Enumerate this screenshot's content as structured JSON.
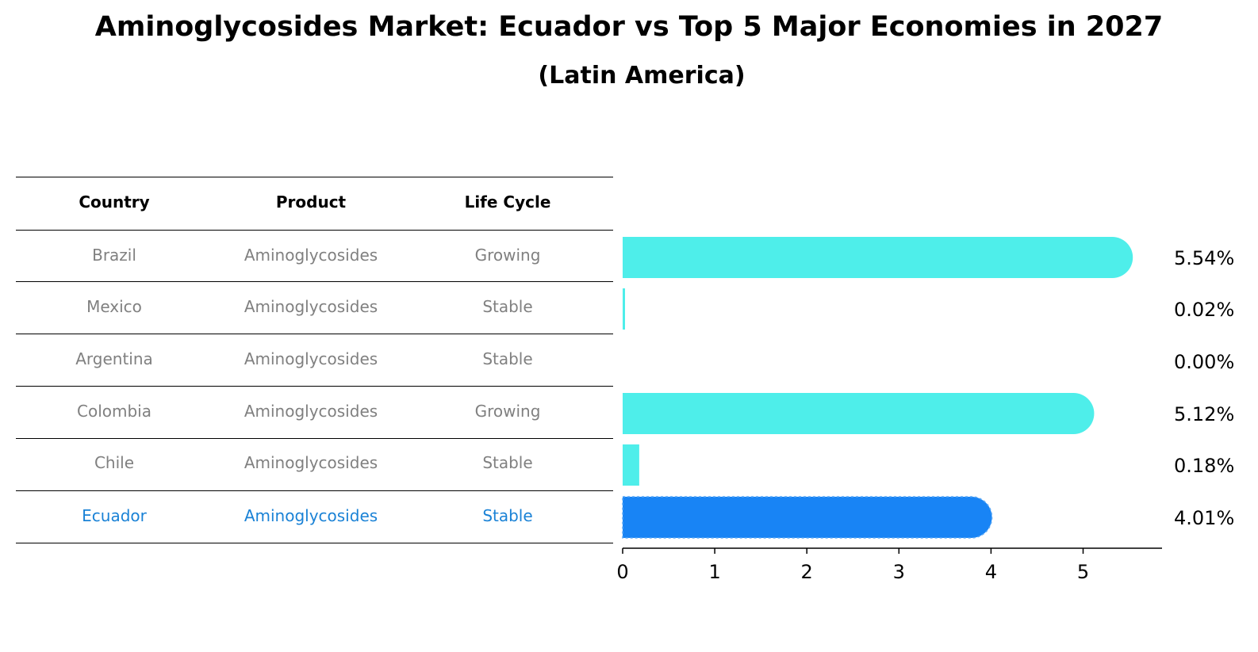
{
  "title": "Aminoglycosides Market: Ecuador vs Top 5 Major Economies in 2027",
  "subtitle": "(Latin America)",
  "table": {
    "headers": [
      "Country",
      "Product",
      "Life Cycle"
    ],
    "rows": [
      [
        "Brazil",
        "Aminoglycosides",
        "Growing"
      ],
      [
        "Mexico",
        "Aminoglycosides",
        "Stable"
      ],
      [
        "Argentina",
        "Aminoglycosides",
        "Stable"
      ],
      [
        "Colombia",
        "Aminoglycosides",
        "Growing"
      ],
      [
        "Chile",
        "Aminoglycosides",
        "Stable"
      ],
      [
        "Ecuador",
        "Aminoglycosides",
        "Stable"
      ]
    ],
    "highlight_row": 5
  },
  "colors": {
    "bar": "#4eeeea",
    "highlight": "#1884f5",
    "highlight_text": "#1a82d6"
  },
  "chart_data": {
    "type": "bar",
    "orientation": "horizontal",
    "categories": [
      "Brazil",
      "Mexico",
      "Argentina",
      "Colombia",
      "Chile",
      "Ecuador"
    ],
    "values": [
      5.54,
      0.02,
      0.0,
      5.12,
      0.18,
      4.01
    ],
    "value_labels": [
      "5.54%",
      "0.02%",
      "0.00%",
      "5.12%",
      "0.18%",
      "4.01%"
    ],
    "xticks": [
      0,
      1,
      2,
      3,
      4,
      5
    ],
    "xlim": [
      0,
      5.85
    ],
    "grid": false,
    "highlight": "Ecuador"
  }
}
